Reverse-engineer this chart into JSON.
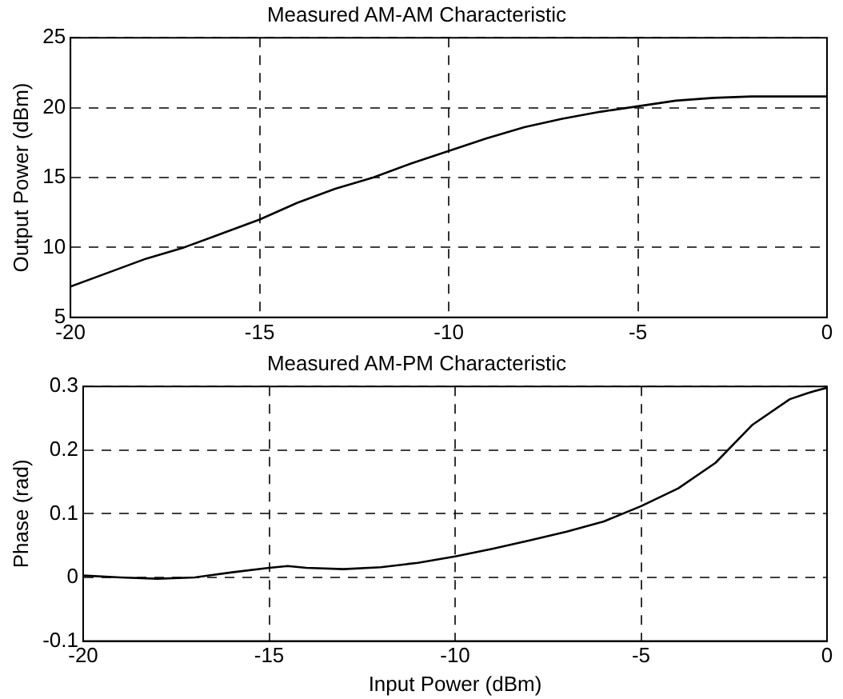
{
  "chart_data": [
    {
      "type": "line",
      "title": "Measured AM-AM Characteristic",
      "ylabel": "Output Power (dBm)",
      "x": [
        -20,
        -19,
        -18,
        -17,
        -16,
        -15,
        -14,
        -13,
        -12,
        -11,
        -10,
        -9,
        -8,
        -7,
        -6,
        -5,
        -4,
        -3,
        -2,
        -1,
        0
      ],
      "series": [
        {
          "color": "#000000",
          "values": [
            7.2,
            8.2,
            9.2,
            10.0,
            11.0,
            12.0,
            13.2,
            14.2,
            15.0,
            16.0,
            16.9,
            17.8,
            18.6,
            19.2,
            19.7,
            20.1,
            20.5,
            20.7,
            20.8,
            20.8,
            20.8
          ]
        }
      ],
      "xlim": [
        -20,
        0
      ],
      "xticks": [
        -20,
        -15,
        -10,
        -5,
        0
      ],
      "ylim": [
        5,
        25
      ],
      "yticks": [
        5,
        10,
        15,
        20,
        25
      ],
      "grid": true,
      "marker": "none",
      "line_style": "solid"
    },
    {
      "type": "line",
      "title": "Measured AM-PM Characteristic",
      "xlabel": "Input Power (dBm)",
      "ylabel": "Phase (rad)",
      "x": [
        -20,
        -19,
        -18,
        -17,
        -16,
        -15,
        -14.5,
        -14,
        -13,
        -12,
        -11,
        -10,
        -9,
        -8,
        -7,
        -6,
        -5,
        -4,
        -3,
        -2,
        -1,
        -0.5,
        0
      ],
      "series": [
        {
          "color": "#000000",
          "values": [
            0.003,
            0.0,
            -0.002,
            0.0,
            0.008,
            0.015,
            0.018,
            0.015,
            0.013,
            0.016,
            0.023,
            0.033,
            0.045,
            0.058,
            0.072,
            0.088,
            0.112,
            0.14,
            0.18,
            0.24,
            0.28,
            0.29,
            0.298
          ]
        }
      ],
      "xlim": [
        -20,
        0
      ],
      "xticks": [
        -20,
        -15,
        -10,
        -5,
        0
      ],
      "ylim": [
        -0.1,
        0.3
      ],
      "yticks": [
        -0.1,
        0,
        0.1,
        0.2,
        0.3
      ],
      "grid": true,
      "marker": "none",
      "line_style": "solid"
    }
  ]
}
